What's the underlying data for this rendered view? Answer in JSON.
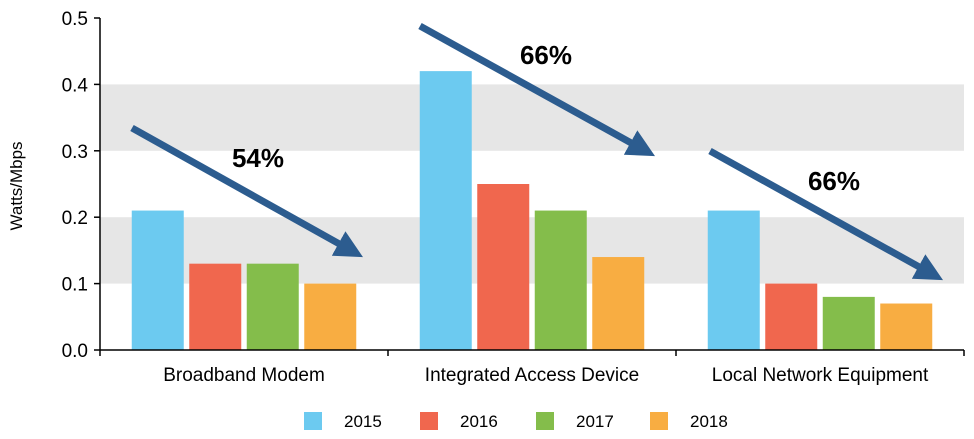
{
  "chart_data": {
    "type": "bar",
    "title": "",
    "xlabel": "",
    "ylabel": "Watts/Mbps",
    "ylim": [
      0,
      0.5
    ],
    "yticks": [
      "0.0",
      "0.1",
      "0.2",
      "0.3",
      "0.4",
      "0.5"
    ],
    "grid": "alternating horizontal bands",
    "categories": [
      "Broadband Modem",
      "Integrated Access Device",
      "Local Network Equipment"
    ],
    "series": [
      {
        "name": "2015",
        "color": "#6ccaf0",
        "values": [
          0.21,
          0.42,
          0.21
        ]
      },
      {
        "name": "2016",
        "color": "#f0674e",
        "values": [
          0.13,
          0.25,
          0.1
        ]
      },
      {
        "name": "2017",
        "color": "#84bd4b",
        "values": [
          0.13,
          0.21,
          0.08
        ]
      },
      {
        "name": "2018",
        "color": "#f8ad42",
        "values": [
          0.1,
          0.14,
          0.07
        ]
      }
    ],
    "legend_position": "bottom",
    "annotations": [
      {
        "category": "Broadband Modem",
        "text": "54%",
        "type": "downward arrow"
      },
      {
        "category": "Integrated Access Device",
        "text": "66%",
        "type": "downward arrow"
      },
      {
        "category": "Local Network Equipment",
        "text": "66%",
        "type": "downward arrow"
      }
    ],
    "colors": {
      "band": "#e6e6e6",
      "arrow": "#2c5c8f",
      "axis": "#000000"
    }
  }
}
